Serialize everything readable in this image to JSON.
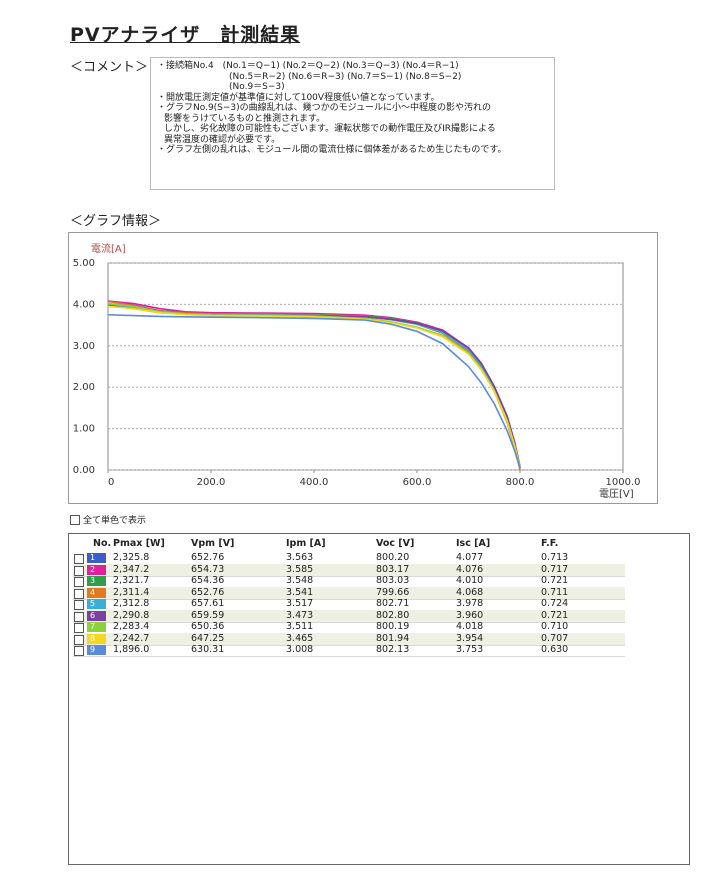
{
  "title": "PVアナライザ　計測結果",
  "comment_label": "＜コメント＞",
  "comment_lines": [
    "・接続箱No.4　(No.1＝Q−1) (No.2＝Q−2) (No.3＝Q−3) (No.4＝R−1)",
    "(No.5＝R−2) (No.6＝R−3) (No.7＝S−1) (No.8＝S−2)",
    "(No.9＝S−3)",
    "・開放電圧測定値が基準値に対して100V程度低い値となっています。",
    "・グラフNo.9(S−3)の曲線乱れは、幾つかのモジュールに小〜中程度の影や汚れの",
    "影響をうけているものと推測されます。",
    "しかし、劣化故障の可能性もございます。運転状態での動作電圧及びIR撮影による",
    "異常温度の確認が必要です。",
    "・グラフ左側の乱れは、モジュール間の電流仕様に個体差があるため生じたものです。"
  ],
  "graph_label": "＜グラフ情報＞",
  "chart_data": {
    "type": "line",
    "y_label": "電流[A]",
    "x_label": "電圧[V]",
    "xlim": [
      0,
      1000
    ],
    "ylim": [
      0,
      5
    ],
    "xticks": [
      0,
      {
        "value": 200,
        "label": "200.0"
      },
      {
        "value": 400,
        "label": "400.0"
      },
      {
        "value": 600,
        "label": "600.0"
      },
      {
        "value": 800,
        "label": "800.0"
      },
      {
        "value": 1000,
        "label": "1000.0"
      }
    ],
    "yticks": [
      {
        "value": 0,
        "label": "0.00"
      },
      {
        "value": 1,
        "label": "1.00"
      },
      {
        "value": 2,
        "label": "2.00"
      },
      {
        "value": 3,
        "label": "3.00"
      },
      {
        "value": 4,
        "label": "4.00"
      },
      {
        "value": 5,
        "label": "5.00"
      }
    ],
    "grid": true,
    "x": [
      0,
      50,
      100,
      150,
      200,
      300,
      400,
      500,
      550,
      600,
      650,
      700,
      725,
      750,
      775,
      790,
      800
    ],
    "series": [
      {
        "color": "#3a5fcd",
        "values": [
          4.08,
          3.98,
          3.85,
          3.8,
          3.78,
          3.77,
          3.76,
          3.72,
          3.66,
          3.55,
          3.35,
          2.9,
          2.5,
          1.95,
          1.2,
          0.55,
          0.03
        ]
      },
      {
        "color": "#e0209a",
        "values": [
          4.08,
          4.02,
          3.9,
          3.82,
          3.8,
          3.79,
          3.78,
          3.74,
          3.68,
          3.57,
          3.38,
          2.95,
          2.58,
          2.02,
          1.3,
          0.65,
          0.08
        ]
      },
      {
        "color": "#2e9e4a",
        "values": [
          4.01,
          3.95,
          3.82,
          3.78,
          3.77,
          3.76,
          3.75,
          3.72,
          3.66,
          3.55,
          3.35,
          2.92,
          2.55,
          2.0,
          1.28,
          0.62,
          0.07
        ]
      },
      {
        "color": "#e07a20",
        "values": [
          4.07,
          3.97,
          3.84,
          3.79,
          3.77,
          3.76,
          3.75,
          3.71,
          3.64,
          3.52,
          3.3,
          2.85,
          2.45,
          1.9,
          1.15,
          0.5,
          0.0
        ]
      },
      {
        "color": "#3aaed8",
        "values": [
          3.98,
          3.93,
          3.82,
          3.77,
          3.76,
          3.75,
          3.74,
          3.7,
          3.63,
          3.52,
          3.32,
          2.9,
          2.52,
          1.98,
          1.25,
          0.6,
          0.06
        ]
      },
      {
        "color": "#7a3fa0",
        "values": [
          3.96,
          3.9,
          3.8,
          3.76,
          3.75,
          3.74,
          3.73,
          3.7,
          3.64,
          3.54,
          3.36,
          2.95,
          2.57,
          2.02,
          1.3,
          0.65,
          0.07
        ]
      },
      {
        "color": "#8cd040",
        "values": [
          4.02,
          3.95,
          3.82,
          3.77,
          3.75,
          3.74,
          3.72,
          3.66,
          3.58,
          3.45,
          3.25,
          2.82,
          2.45,
          1.92,
          1.2,
          0.58,
          0.05
        ]
      },
      {
        "color": "#f2d820",
        "values": [
          3.95,
          3.9,
          3.8,
          3.75,
          3.73,
          3.72,
          3.7,
          3.64,
          3.56,
          3.43,
          3.22,
          2.8,
          2.42,
          1.9,
          1.18,
          0.56,
          0.05
        ]
      },
      {
        "color": "#5a8ad8",
        "values": [
          3.75,
          3.73,
          3.71,
          3.7,
          3.69,
          3.68,
          3.66,
          3.62,
          3.52,
          3.35,
          3.05,
          2.5,
          2.1,
          1.6,
          0.95,
          0.45,
          0.05
        ]
      }
    ]
  },
  "mono_checkbox_label": "全て単色で表示",
  "table": {
    "header": [
      "No.",
      "Pmax [W]",
      "Vpm [V]",
      "Ipm [A]",
      "Voc [V]",
      "Isc [A]",
      "F.F."
    ],
    "rows": [
      [
        "1",
        "2,325.8",
        "652.76",
        "3.563",
        "800.20",
        "4.077",
        "0.713"
      ],
      [
        "2",
        "2,347.2",
        "654.73",
        "3.585",
        "803.17",
        "4.076",
        "0.717"
      ],
      [
        "3",
        "2,321.7",
        "654.36",
        "3.548",
        "803.03",
        "4.010",
        "0.721"
      ],
      [
        "4",
        "2,311.4",
        "652.76",
        "3.541",
        "799.66",
        "4.068",
        "0.711"
      ],
      [
        "5",
        "2,312.8",
        "657.61",
        "3.517",
        "802.71",
        "3.978",
        "0.724"
      ],
      [
        "6",
        "2,290.8",
        "659.59",
        "3.473",
        "802.80",
        "3.960",
        "0.721"
      ],
      [
        "7",
        "2,283.4",
        "650.36",
        "3.511",
        "800.19",
        "4.018",
        "0.710"
      ],
      [
        "8",
        "2,242.7",
        "647.25",
        "3.465",
        "801.94",
        "3.954",
        "0.707"
      ],
      [
        "9",
        "1,896.0",
        "630.31",
        "3.008",
        "802.13",
        "3.753",
        "0.630"
      ]
    ]
  }
}
